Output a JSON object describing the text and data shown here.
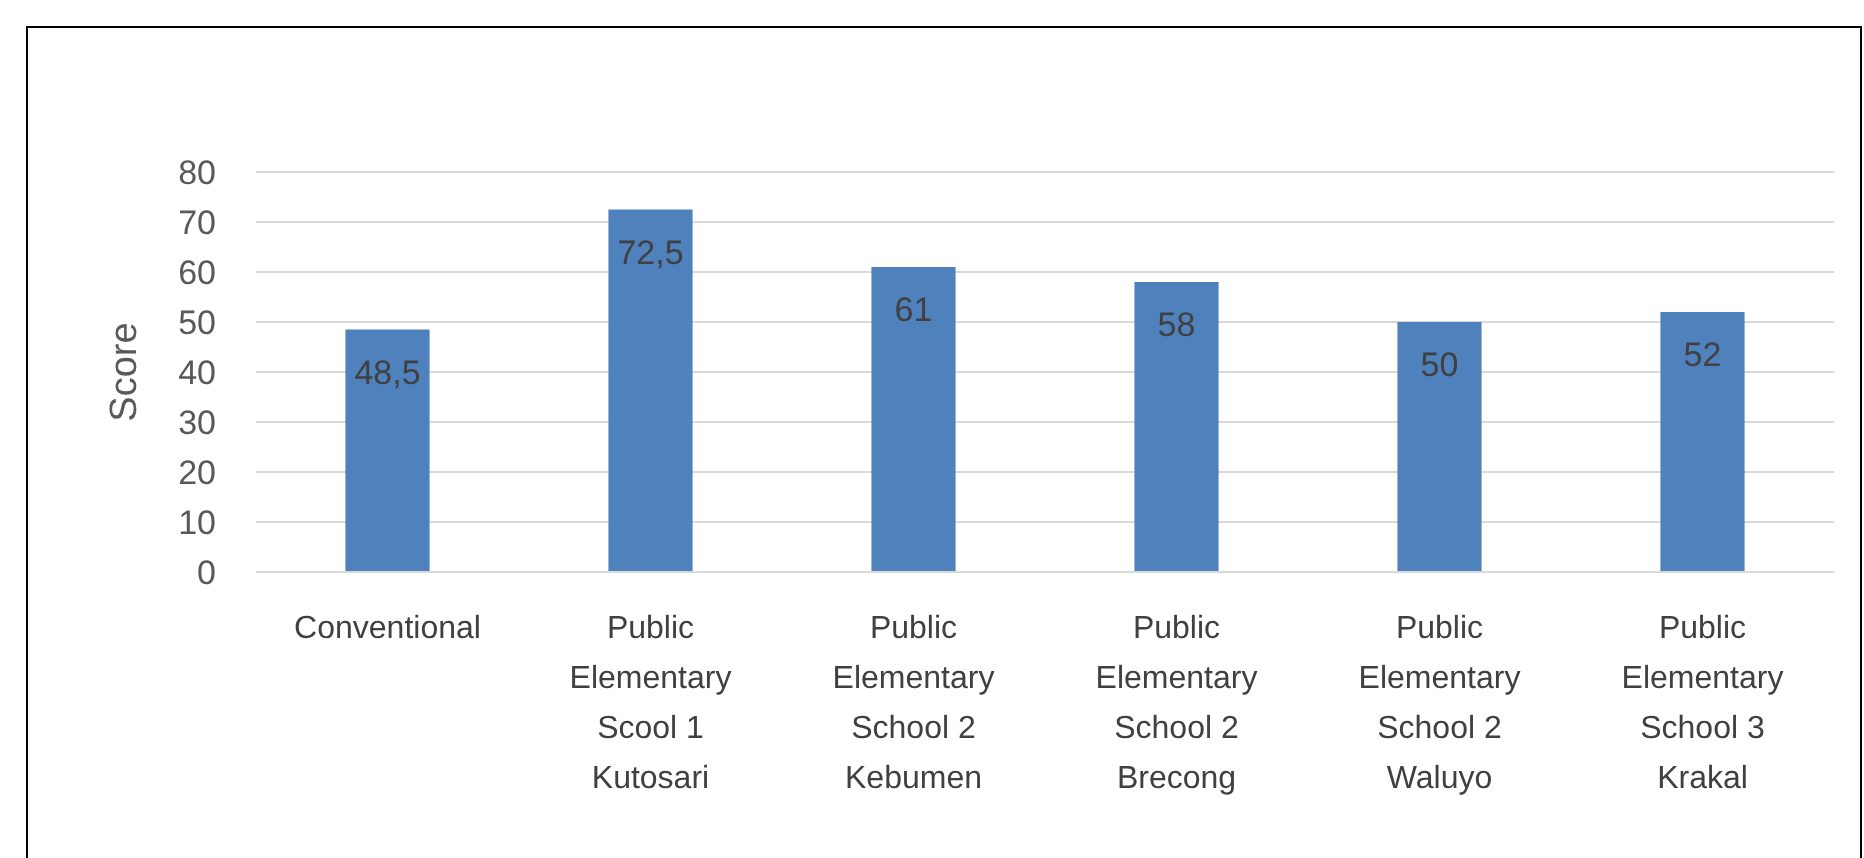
{
  "chart_data": {
    "type": "bar",
    "ylabel": "Score",
    "categories": [
      "Conventional",
      "Public Elementary Scool 1 Kutosari",
      "Public Elementary School 2 Kebumen",
      "Public Elementary School 2 Brecong",
      "Public Elementary School 2 Waluyo",
      "Public Elementary School 3 Krakal"
    ],
    "values": [
      48.5,
      72.5,
      61,
      58,
      50,
      52
    ],
    "value_labels": [
      "48,5",
      "72,5",
      "61",
      "58",
      "50",
      "52"
    ],
    "color": "#4f81bd",
    "ylim": [
      0,
      80
    ],
    "yticks": [
      0,
      10,
      20,
      30,
      40,
      50,
      60,
      70,
      80
    ],
    "grid": "y"
  }
}
